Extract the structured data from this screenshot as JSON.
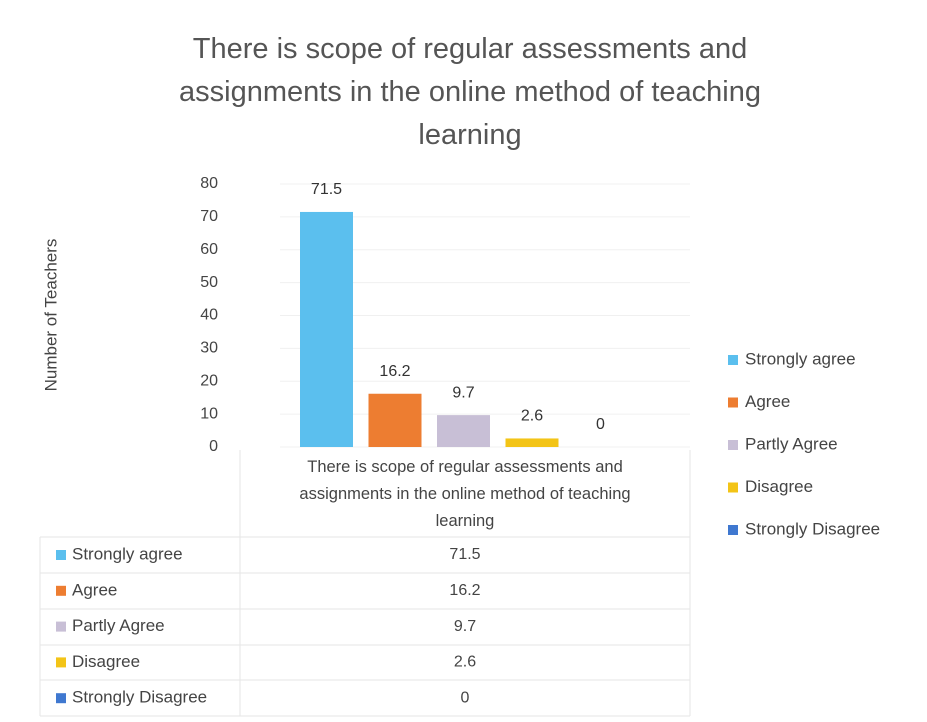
{
  "chart_data": {
    "type": "bar",
    "title": "There is scope of regular assessments and assignments in the online method of teaching learning",
    "categories": [
      "There is scope of regular assessments and assignments in the online method of teaching learning"
    ],
    "ylabel": "Number of Teachers",
    "ylim": [
      0,
      80
    ],
    "yticks": [
      0,
      10,
      20,
      30,
      40,
      50,
      60,
      70,
      80
    ],
    "grid": true,
    "legend": "right",
    "series": [
      {
        "name": "Strongly agree",
        "color": "#5bbfee",
        "values": [
          71.5
        ]
      },
      {
        "name": "Agree",
        "color": "#ed7d31",
        "values": [
          16.2
        ]
      },
      {
        "name": "Partly Agree",
        "color": "#c8bfd6",
        "values": [
          9.7
        ]
      },
      {
        "name": "Disagree",
        "color": "#f3c417",
        "values": [
          2.6
        ]
      },
      {
        "name": "Strongly Disagree",
        "color": "#3f78d0",
        "values": [
          0
        ]
      }
    ]
  }
}
